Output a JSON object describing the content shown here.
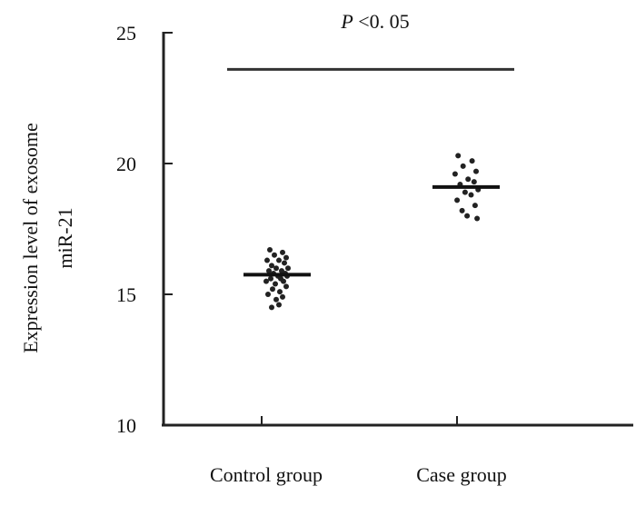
{
  "chart_data": {
    "type": "scatter",
    "title": "",
    "xlabel": "",
    "ylabel": [
      "Expression level of exosome",
      "miR-21"
    ],
    "categories": [
      "Control group",
      "Case group"
    ],
    "ylim": [
      10,
      25
    ],
    "yticks": [
      "10",
      "15",
      "20",
      "25"
    ],
    "grid": false,
    "series": [
      {
        "category": "Control group",
        "mean": 15.75,
        "values": [
          16.7,
          16.6,
          16.5,
          16.4,
          16.3,
          16.3,
          16.2,
          16.1,
          16.0,
          16.0,
          15.9,
          15.9,
          15.8,
          15.8,
          15.7,
          15.7,
          15.6,
          15.6,
          15.5,
          15.5,
          15.4,
          15.3,
          15.2,
          15.1,
          15.0,
          14.9,
          14.8,
          14.6,
          14.5
        ]
      },
      {
        "category": "Case group",
        "mean": 19.1,
        "values": [
          20.3,
          20.1,
          19.9,
          19.7,
          19.6,
          19.4,
          19.3,
          19.2,
          19.0,
          18.9,
          18.8,
          18.6,
          18.4,
          18.2,
          18.0,
          17.9
        ]
      }
    ],
    "significance": {
      "label_italic": "P",
      "label_rest": "<0. 05",
      "y": 23.6
    }
  }
}
